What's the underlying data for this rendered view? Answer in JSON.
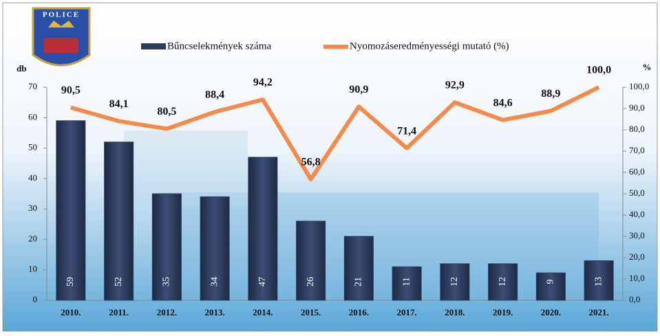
{
  "logo": {
    "text": "POLICE"
  },
  "chart_data": {
    "type": "bar-line",
    "y_label": "db",
    "y2_label": "%",
    "categories": [
      "2010.",
      "2011.",
      "2012.",
      "2013.",
      "2014.",
      "2015.",
      "2016.",
      "2017.",
      "2018.",
      "2019.",
      "2020.",
      "2021."
    ],
    "series": [
      {
        "name": "Bűncselekmények száma",
        "type": "bar",
        "color": "#2c3b5e",
        "values": [
          59,
          52,
          35,
          34,
          47,
          26,
          21,
          11,
          12,
          12,
          9,
          13
        ]
      },
      {
        "name": "Nyomozáseredményességi mutató (%)",
        "type": "line",
        "axis": "y2",
        "color": "#f58a4b",
        "values": [
          90.5,
          84.1,
          80.5,
          88.4,
          94.2,
          56.8,
          90.9,
          71.4,
          92.9,
          84.6,
          88.9,
          100.0
        ],
        "value_labels": [
          "90,5",
          "84,1",
          "80,5",
          "88,4",
          "94,2",
          "56,8",
          "90,9",
          "71,4",
          "92,9",
          "84,6",
          "88,9",
          "100,0"
        ]
      }
    ],
    "ylim": [
      0,
      70
    ],
    "yticks": [
      0,
      10,
      20,
      30,
      40,
      50,
      60,
      70
    ],
    "y2lim": [
      0,
      100
    ],
    "y2ticks": [
      {
        "value": 0,
        "label": "0,0"
      },
      {
        "value": 10,
        "label": "10,0"
      },
      {
        "value": 20,
        "label": "20,0"
      },
      {
        "value": 30,
        "label": "30,0"
      },
      {
        "value": 40,
        "label": "40,0"
      },
      {
        "value": 50,
        "label": "50,0"
      },
      {
        "value": 60,
        "label": "60,0"
      },
      {
        "value": 70,
        "label": "70,0"
      },
      {
        "value": 80,
        "label": "80,0"
      },
      {
        "value": 90,
        "label": "90,0"
      },
      {
        "value": 100,
        "label": "100,0"
      }
    ],
    "grid": false
  }
}
